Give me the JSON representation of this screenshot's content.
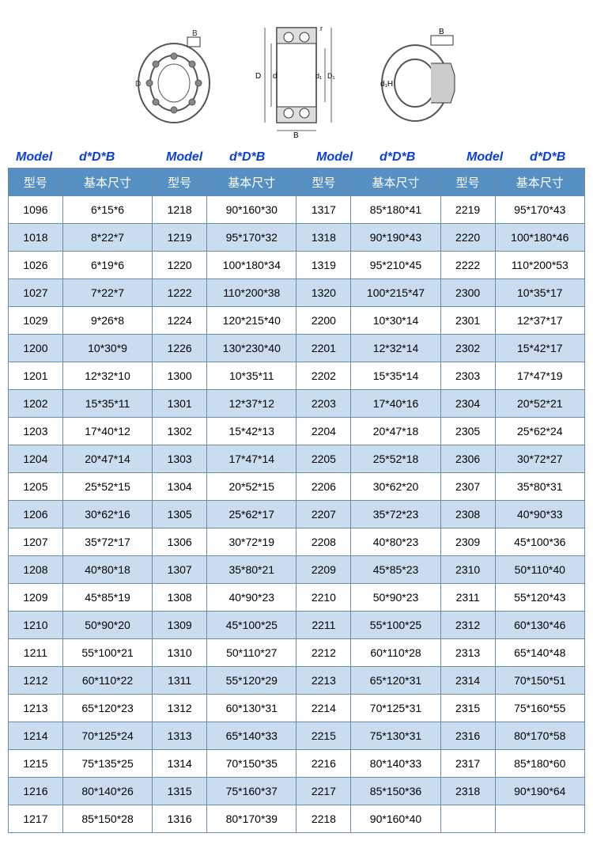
{
  "labels": {
    "model": "Model",
    "dim": "d*D*B"
  },
  "headers": {
    "model": "型号",
    "dim": "基本尺寸"
  },
  "columns": [
    {
      "model": [
        "1096",
        "1018",
        "1026",
        "1027",
        "1029",
        "1200",
        "1201",
        "1202",
        "1203",
        "1204",
        "1205",
        "1206",
        "1207",
        "1208",
        "1209",
        "1210",
        "1211",
        "1212",
        "1213",
        "1214",
        "1215",
        "1216",
        "1217"
      ],
      "dim": [
        "6*15*6",
        "8*22*7",
        "6*19*6",
        "7*22*7",
        "9*26*8",
        "10*30*9",
        "12*32*10",
        "15*35*11",
        "17*40*12",
        "20*47*14",
        "25*52*15",
        "30*62*16",
        "35*72*17",
        "40*80*18",
        "45*85*19",
        "50*90*20",
        "55*100*21",
        "60*110*22",
        "65*120*23",
        "70*125*24",
        "75*135*25",
        "80*140*26",
        "85*150*28"
      ]
    },
    {
      "model": [
        "1218",
        "1219",
        "1220",
        "1222",
        "1224",
        "1226",
        "1300",
        "1301",
        "1302",
        "1303",
        "1304",
        "1305",
        "1306",
        "1307",
        "1308",
        "1309",
        "1310",
        "1311",
        "1312",
        "1313",
        "1314",
        "1315",
        "1316"
      ],
      "dim": [
        "90*160*30",
        "95*170*32",
        "100*180*34",
        "110*200*38",
        "120*215*40",
        "130*230*40",
        "10*35*11",
        "12*37*12",
        "15*42*13",
        "17*47*14",
        "20*52*15",
        "25*62*17",
        "30*72*19",
        "35*80*21",
        "40*90*23",
        "45*100*25",
        "50*110*27",
        "55*120*29",
        "60*130*31",
        "65*140*33",
        "70*150*35",
        "75*160*37",
        "80*170*39"
      ]
    },
    {
      "model": [
        "1317",
        "1318",
        "1319",
        "1320",
        "2200",
        "2201",
        "2202",
        "2203",
        "2204",
        "2205",
        "2206",
        "2207",
        "2208",
        "2209",
        "2210",
        "2211",
        "2212",
        "2213",
        "2214",
        "2215",
        "2216",
        "2217",
        "2218"
      ],
      "dim": [
        "85*180*41",
        "90*190*43",
        "95*210*45",
        "100*215*47",
        "10*30*14",
        "12*32*14",
        "15*35*14",
        "17*40*16",
        "20*47*18",
        "25*52*18",
        "30*62*20",
        "35*72*23",
        "40*80*23",
        "45*85*23",
        "50*90*23",
        "55*100*25",
        "60*110*28",
        "65*120*31",
        "70*125*31",
        "75*130*31",
        "80*140*33",
        "85*150*36",
        "90*160*40"
      ]
    },
    {
      "model": [
        "2219",
        "2220",
        "2222",
        "2300",
        "2301",
        "2302",
        "2303",
        "2304",
        "2305",
        "2306",
        "2307",
        "2308",
        "2309",
        "2310",
        "2311",
        "2312",
        "2313",
        "2314",
        "2315",
        "2316",
        "2317",
        "2318",
        ""
      ],
      "dim": [
        "95*170*43",
        "100*180*46",
        "110*200*53",
        "10*35*17",
        "12*37*17",
        "15*42*17",
        "17*47*19",
        "20*52*21",
        "25*62*24",
        "30*72*27",
        "35*80*31",
        "40*90*33",
        "45*100*36",
        "50*110*40",
        "55*120*43",
        "60*130*46",
        "65*140*48",
        "70*150*51",
        "75*160*55",
        "80*170*58",
        "85*180*60",
        "90*190*64",
        ""
      ]
    }
  ],
  "rowCount": 23,
  "style": {
    "header_bg": "#5690c2",
    "header_fg": "#ffffff",
    "border": "#6b8aa6",
    "row_alt_bg": "#c9ddee",
    "label_color": "#0a3fd8"
  }
}
